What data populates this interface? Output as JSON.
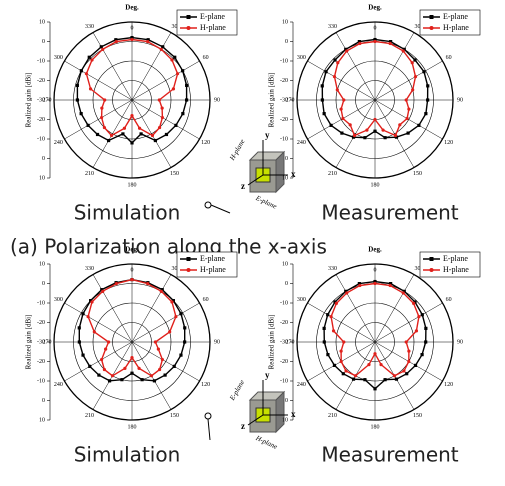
{
  "chart_data": [
    {
      "type": "polar",
      "title": "Simulation",
      "theta_label": "Deg.",
      "r_label": "Realized gain [dBi]",
      "theta": [
        0,
        15,
        30,
        45,
        60,
        75,
        90,
        105,
        120,
        135,
        150,
        165,
        180,
        195,
        210,
        225,
        240,
        255,
        270,
        285,
        300,
        315,
        330,
        345
      ],
      "theta_ticks": [
        0,
        30,
        60,
        90,
        120,
        150,
        180,
        210,
        240,
        270,
        300,
        330
      ],
      "rlim": [
        -30,
        10
      ],
      "rticks": [
        10,
        0,
        -10,
        -20,
        -30
      ],
      "legend": "upper right",
      "series": [
        {
          "name": "E-plane",
          "color": "#000000",
          "marker": "square",
          "values": [
            2,
            2,
            1.5,
            1,
            0,
            -1,
            -2,
            -3,
            -4,
            -5,
            -6,
            -12,
            -8,
            -12,
            -6,
            -5,
            -4,
            -3,
            -2,
            -1,
            0,
            1,
            1.5,
            2
          ]
        },
        {
          "name": "H-plane",
          "color": "#e0201b",
          "marker": "circle",
          "values": [
            1,
            1,
            0,
            -1,
            -3,
            -8,
            -16,
            -14,
            -12,
            -10,
            -9,
            -15,
            -22,
            -15,
            -9,
            -10,
            -12,
            -14,
            -16,
            -8,
            -3,
            -1,
            0,
            1
          ]
        }
      ]
    },
    {
      "type": "polar",
      "title": "Measurement",
      "theta_label": "Deg.",
      "r_label": "Realized gain [dBi]",
      "theta": [
        0,
        15,
        30,
        45,
        60,
        75,
        90,
        105,
        120,
        135,
        150,
        165,
        180,
        195,
        210,
        225,
        240,
        255,
        270,
        285,
        300,
        315,
        330,
        345
      ],
      "theta_ticks": [
        0,
        30,
        60,
        90,
        120,
        150,
        180,
        210,
        240,
        270,
        300,
        330
      ],
      "rlim": [
        -30,
        10
      ],
      "rticks": [
        10,
        0,
        -10,
        -20,
        -30
      ],
      "legend": "upper right",
      "series": [
        {
          "name": "E-plane",
          "color": "#000000",
          "marker": "square",
          "values": [
            1,
            1,
            0,
            -1,
            -1,
            -2,
            -3,
            -3,
            -4,
            -6,
            -8,
            -10,
            -14,
            -10,
            -8,
            -6,
            -4,
            -3,
            -3,
            -2,
            -1,
            -1,
            0,
            1
          ]
        },
        {
          "name": "H-plane",
          "color": "#e0201b",
          "marker": "circle",
          "values": [
            0,
            0,
            -1,
            -3,
            -6,
            -10,
            -14,
            -12,
            -11,
            -12,
            -9,
            -14,
            -20,
            -14,
            -9,
            -12,
            -11,
            -12,
            -14,
            -10,
            -6,
            -3,
            -1,
            0
          ]
        }
      ]
    },
    {
      "type": "polar",
      "title": "Simulation",
      "theta_label": "Deg.",
      "r_label": "Realized gain [dBi]",
      "theta": [
        0,
        15,
        30,
        45,
        60,
        75,
        90,
        105,
        120,
        135,
        150,
        165,
        180,
        195,
        210,
        225,
        240,
        255,
        270,
        285,
        300,
        315,
        330,
        345
      ],
      "theta_ticks": [
        0,
        30,
        60,
        90,
        120,
        150,
        180,
        210,
        240,
        270,
        300,
        330
      ],
      "rlim": [
        -30,
        10
      ],
      "rticks": [
        10,
        0,
        -10,
        -20,
        -30
      ],
      "legend": "upper right",
      "series": [
        {
          "name": "E-plane",
          "color": "#000000",
          "marker": "square",
          "values": [
            2,
            1.5,
            1,
            0,
            -1,
            -2,
            -3,
            -4,
            -5,
            -6,
            -7,
            -10,
            -14,
            -10,
            -7,
            -6,
            -5,
            -4,
            -3,
            -2,
            -1,
            0,
            1,
            1.5
          ]
        },
        {
          "name": "H-plane",
          "color": "#e0201b",
          "marker": "circle",
          "values": [
            2,
            1,
            0,
            -1,
            -4,
            -10,
            -18,
            -16,
            -12,
            -10,
            -10,
            -16,
            -22,
            -16,
            -10,
            -10,
            -12,
            -16,
            -18,
            -10,
            -4,
            -1,
            0,
            1
          ]
        }
      ]
    },
    {
      "type": "polar",
      "title": "Measurement",
      "theta_label": "Deg.",
      "r_label": "Realized gain [dBi]",
      "theta": [
        0,
        15,
        30,
        45,
        60,
        75,
        90,
        105,
        120,
        135,
        150,
        165,
        180,
        195,
        210,
        225,
        240,
        255,
        270,
        285,
        300,
        315,
        330,
        345
      ],
      "theta_ticks": [
        0,
        30,
        60,
        90,
        120,
        150,
        180,
        210,
        240,
        270,
        300,
        330
      ],
      "rlim": [
        -30,
        10
      ],
      "rticks": [
        10,
        0,
        -10,
        -20,
        -30
      ],
      "legend": "upper right",
      "series": [
        {
          "name": "E-plane",
          "color": "#000000",
          "marker": "square",
          "values": [
            1,
            1,
            0,
            -1,
            -2,
            -3,
            -4,
            -5,
            -6,
            -7,
            -8,
            -10,
            -6,
            -10,
            -8,
            -7,
            -6,
            -5,
            -4,
            -3,
            -2,
            -1,
            0,
            1
          ]
        },
        {
          "name": "H-plane",
          "color": "#e0201b",
          "marker": "circle",
          "values": [
            0,
            0,
            -1,
            -2,
            -4,
            -8,
            -14,
            -12,
            -10,
            -9,
            -10,
            -18,
            -24,
            -18,
            -10,
            -9,
            -10,
            -12,
            -14,
            -8,
            -4,
            -2,
            -1,
            0
          ]
        }
      ]
    }
  ],
  "figure_caption": "(a) Polarization along the x-axis",
  "insets": [
    {
      "x": "x",
      "y": "y",
      "z": "z",
      "h_plane": "H-plane",
      "e_plane": "E-plane"
    },
    {
      "x": "x",
      "y": "y",
      "z": "z",
      "h_plane": "H-plane",
      "e_plane": "E-plane"
    }
  ]
}
